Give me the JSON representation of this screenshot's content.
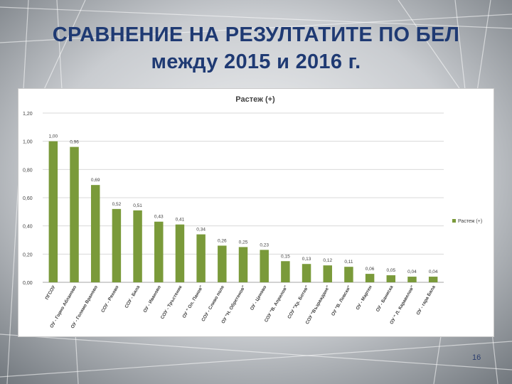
{
  "slide": {
    "title_line1": "СРАВНЕНИЕ НА РЕЗУЛТАТИТЕ ПО БЕЛ",
    "title_line2": "между 2015 и 2016 г.",
    "page_number": "16"
  },
  "colors": {
    "bar": "#7a9a3a",
    "title": "#1f3a73",
    "grid": "#d9d9d9"
  },
  "chart_data": {
    "type": "bar",
    "title": "Растеж (+)",
    "legend": [
      "Растеж (+)"
    ],
    "legend_position": "right",
    "xlabel": "",
    "ylabel": "",
    "ylim": [
      0,
      1.2
    ],
    "yticks": [
      "0,00",
      "0,20",
      "0,40",
      "0,60",
      "0,80",
      "1,00",
      "1,20"
    ],
    "grid": true,
    "categories": [
      "ПГСОУ",
      "ОУ - Горно Абланово",
      "ОУ - Голямо Враново",
      "СОУ - Ряхово",
      "СОУ - Бяла",
      "ОУ - Иваново",
      "СОУ - Тръстеник",
      "ОУ \" Ол. Панов\"",
      "СОУ - Сливо поле",
      "ОУ \"Н. Обретенов\"",
      "ОУ - Ценово",
      "СОУ \"В. Априлов\"",
      "СОУ \"Хр. Ботев\"",
      "СОУ \"Възраждане\"",
      "ОУ \"В. Левски\"",
      "ОУ - Мартен",
      "ОУ - Баниска",
      "ОУ \" Л. Каравелов\"",
      "ОУ - гара Бяла"
    ],
    "values": [
      1.0,
      0.96,
      0.69,
      0.52,
      0.51,
      0.43,
      0.41,
      0.34,
      0.26,
      0.25,
      0.23,
      0.15,
      0.13,
      0.12,
      0.11,
      0.06,
      0.05,
      0.04,
      0.04
    ],
    "value_labels": [
      "1,00",
      "0,96",
      "0,69",
      "0,52",
      "0,51",
      "0,43",
      "0,41",
      "0,34",
      "0,26",
      "0,25",
      "0,23",
      "0,15",
      "0,13",
      "0,12",
      "0,11",
      "0,06",
      "0,05",
      "0,04",
      "0,04"
    ]
  }
}
